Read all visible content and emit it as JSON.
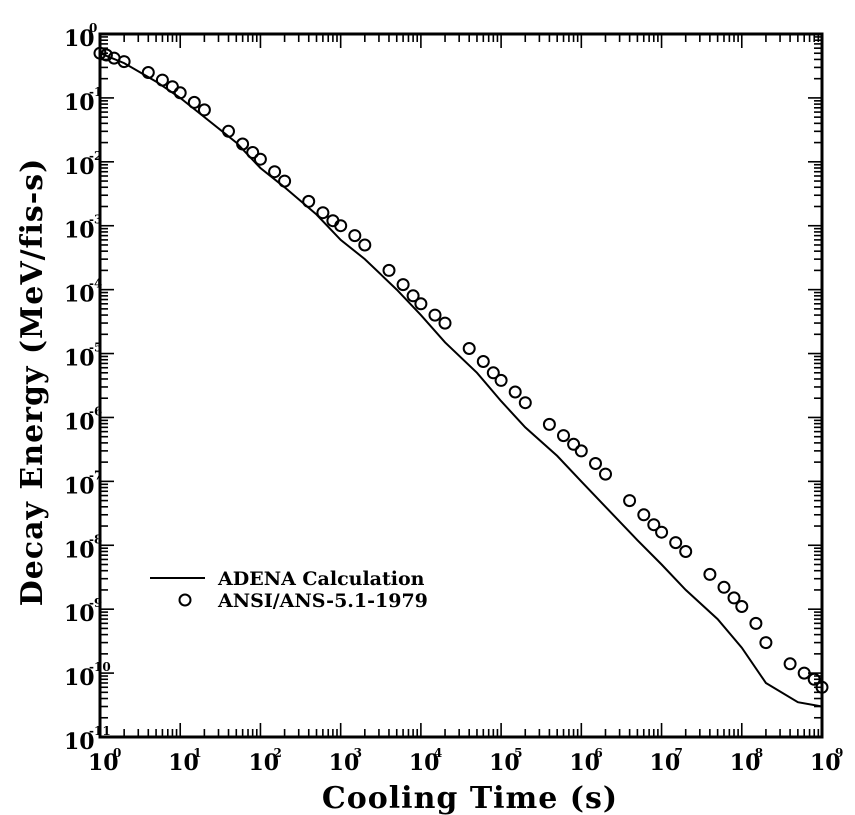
{
  "chart_data": {
    "type": "line",
    "xlabel": "Cooling Time (s)",
    "ylabel": "Decay Energy (MeV/fis-s)",
    "xscale": "log",
    "yscale": "log",
    "xlim": [
      1,
      1000000000
    ],
    "ylim": [
      1e-11,
      1
    ],
    "grid": false,
    "legend_position": "lower-left",
    "x_ticks": [
      {
        "base": "10",
        "exp": "0"
      },
      {
        "base": "10",
        "exp": "1"
      },
      {
        "base": "10",
        "exp": "2"
      },
      {
        "base": "10",
        "exp": "3"
      },
      {
        "base": "10",
        "exp": "4"
      },
      {
        "base": "10",
        "exp": "5"
      },
      {
        "base": "10",
        "exp": "6"
      },
      {
        "base": "10",
        "exp": "7"
      },
      {
        "base": "10",
        "exp": "8"
      },
      {
        "base": "10",
        "exp": "9"
      }
    ],
    "y_ticks": [
      {
        "base": "10",
        "exp": "0"
      },
      {
        "base": "10",
        "exp": "-1"
      },
      {
        "base": "10",
        "exp": "-2"
      },
      {
        "base": "10",
        "exp": "-3"
      },
      {
        "base": "10",
        "exp": "-4"
      },
      {
        "base": "10",
        "exp": "-5"
      },
      {
        "base": "10",
        "exp": "-6"
      },
      {
        "base": "10",
        "exp": "-7"
      },
      {
        "base": "10",
        "exp": "-8"
      },
      {
        "base": "10",
        "exp": "-9"
      },
      {
        "base": "10",
        "exp": "-10"
      },
      {
        "base": "10",
        "exp": "-11"
      }
    ],
    "series": [
      {
        "name": "ADENA Calculation",
        "style": "line",
        "x": [
          1,
          2,
          5,
          10,
          20,
          50,
          100,
          200,
          500,
          1000,
          2000,
          5000,
          10000,
          20000,
          50000,
          100000,
          200000,
          500000,
          1000000,
          2000000,
          5000000,
          10000000,
          20000000,
          50000000,
          100000000,
          200000000,
          500000000,
          1000000000
        ],
        "y": [
          0.5,
          0.35,
          0.18,
          0.1,
          0.05,
          0.02,
          0.008,
          0.004,
          0.0015,
          0.0006,
          0.0003,
          0.0001,
          4e-05,
          1.5e-05,
          5e-06,
          1.8e-06,
          7e-07,
          2.5e-07,
          1e-07,
          4e-08,
          1.2e-08,
          5e-09,
          2e-09,
          7e-10,
          2.5e-10,
          7e-11,
          3.5e-11,
          3e-11
        ]
      },
      {
        "name": "ANSI/ANS-5.1-1979",
        "style": "marker",
        "marker": "open-circle",
        "x": [
          1,
          1.2,
          1.5,
          2,
          4,
          6,
          8,
          10,
          15,
          20,
          40,
          60,
          80,
          100,
          150,
          200,
          400,
          600,
          800,
          1000,
          1500,
          2000,
          4000,
          6000,
          8000,
          10000,
          15000,
          20000,
          40000,
          60000,
          80000,
          100000,
          150000,
          200000,
          400000,
          600000,
          800000,
          1000000,
          1500000,
          2000000,
          4000000,
          6000000,
          8000000,
          10000000,
          15000000,
          20000000,
          40000000,
          60000000,
          80000000,
          100000000,
          150000000,
          200000000,
          400000000,
          600000000,
          800000000,
          1000000000
        ],
        "y": [
          0.5,
          0.47,
          0.42,
          0.37,
          0.25,
          0.19,
          0.15,
          0.12,
          0.085,
          0.065,
          0.03,
          0.019,
          0.014,
          0.011,
          0.007,
          0.005,
          0.0024,
          0.0016,
          0.0012,
          0.001,
          0.0007,
          0.0005,
          0.0002,
          0.00012,
          8e-05,
          6e-05,
          4e-05,
          3e-05,
          1.2e-05,
          7.5e-06,
          5e-06,
          3.8e-06,
          2.5e-06,
          1.7e-06,
          7.8e-07,
          5.2e-07,
          3.8e-07,
          3e-07,
          1.9e-07,
          1.3e-07,
          5e-08,
          3e-08,
          2.1e-08,
          1.6e-08,
          1.1e-08,
          8e-09,
          3.5e-09,
          2.2e-09,
          1.5e-09,
          1.1e-09,
          6e-10,
          3e-10,
          1.4e-10,
          1e-10,
          8e-11,
          6e-11
        ]
      }
    ]
  }
}
